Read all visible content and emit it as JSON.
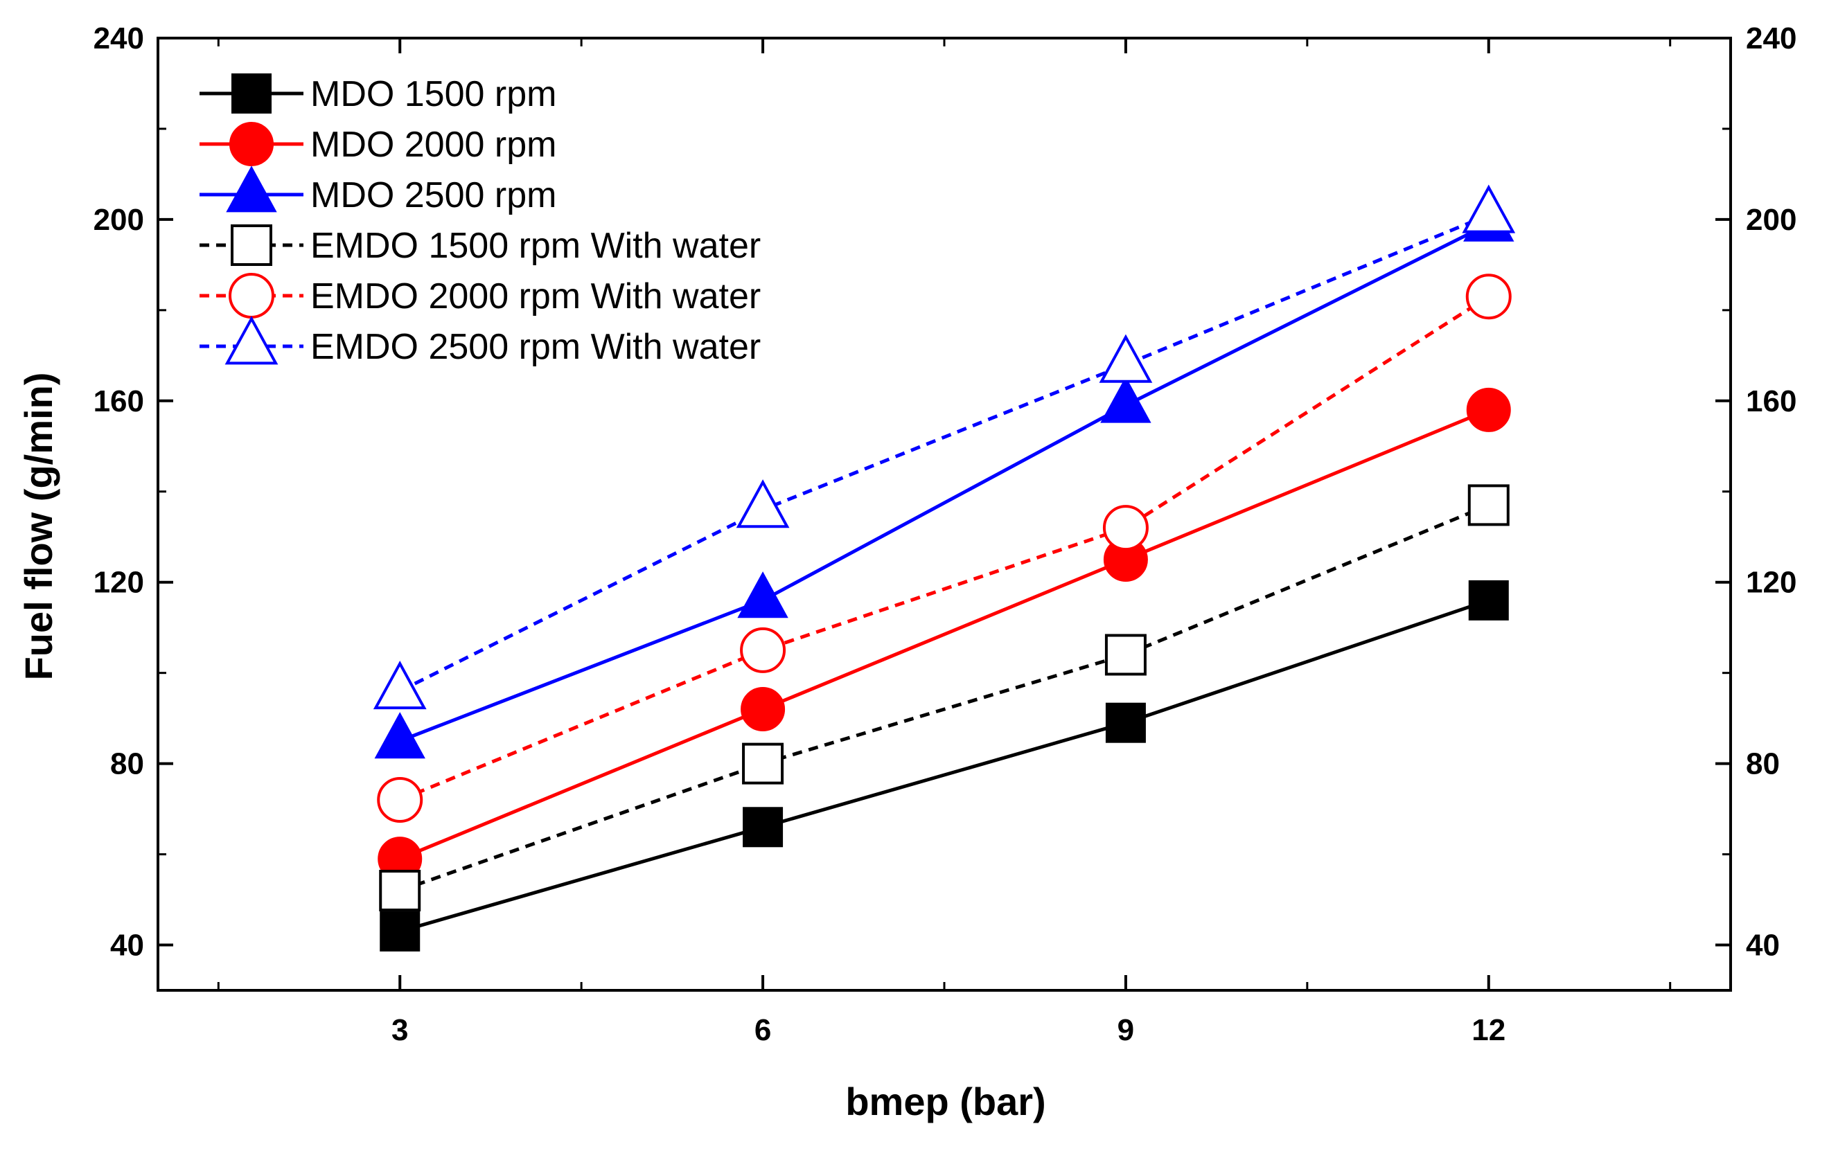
{
  "chart_data": {
    "type": "line",
    "title": "",
    "xlabel": "bmep (bar)",
    "ylabel": "Fuel flow (g/min)",
    "xlim": [
      1.0,
      14.0
    ],
    "ylim": [
      30,
      240
    ],
    "x": [
      3,
      6,
      9,
      12
    ],
    "x_ticks": [
      "3",
      "6",
      "9",
      "12"
    ],
    "y_ticks": [
      "40",
      "80",
      "120",
      "160",
      "200",
      "240"
    ],
    "right_y_ticks": [
      "40",
      "80",
      "120",
      "160",
      "200",
      "240"
    ],
    "legend_position": "top-left",
    "grid": false,
    "series": [
      {
        "name": "MDO 1500 rpm",
        "values": [
          43,
          66,
          89,
          116
        ],
        "color": "#000000",
        "marker": "square",
        "filled": true,
        "dash": "solid"
      },
      {
        "name": "MDO 2000 rpm",
        "values": [
          59,
          92,
          125,
          158
        ],
        "color": "#ff0000",
        "marker": "circle",
        "filled": true,
        "dash": "solid"
      },
      {
        "name": "MDO 2500 rpm",
        "values": [
          85,
          116,
          159,
          199
        ],
        "color": "#0000ff",
        "marker": "triangle",
        "filled": true,
        "dash": "solid"
      },
      {
        "name": "EMDO 1500 rpm With water",
        "values": [
          52,
          80,
          104,
          137
        ],
        "color": "#000000",
        "marker": "square",
        "filled": false,
        "dash": "dashed"
      },
      {
        "name": "EMDO 2000 rpm With water",
        "values": [
          72,
          105,
          132,
          183
        ],
        "color": "#ff0000",
        "marker": "circle",
        "filled": false,
        "dash": "dashed"
      },
      {
        "name": "EMDO 2500 rpm With water",
        "values": [
          96,
          136,
          168,
          201
        ],
        "color": "#0000ff",
        "marker": "triangle",
        "filled": false,
        "dash": "dashed"
      }
    ]
  }
}
